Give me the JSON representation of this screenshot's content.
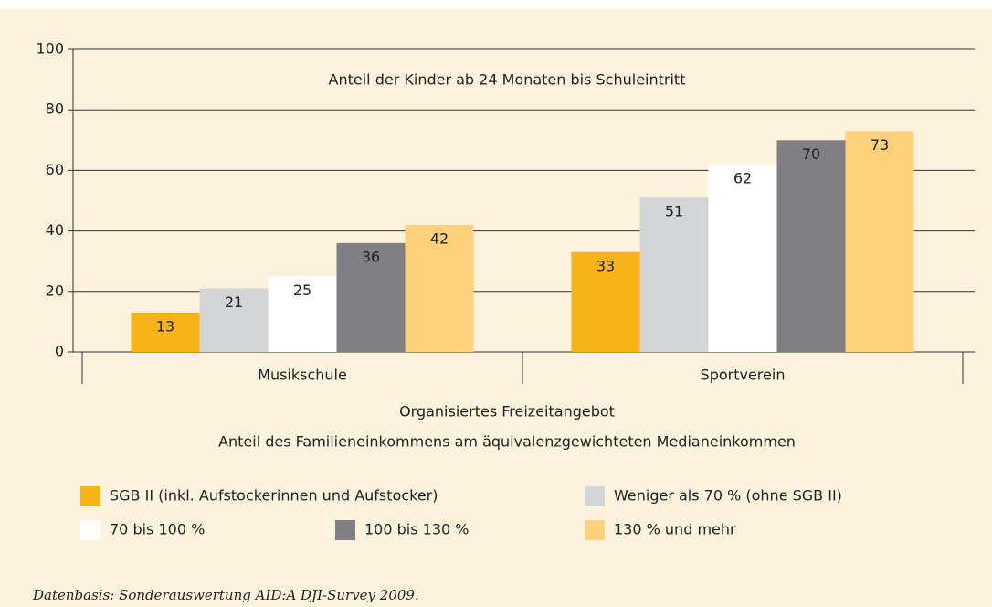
{
  "chart_data": {
    "type": "bar",
    "annotation": "Anteil der Kinder ab 24 Monaten bis Schuleintritt",
    "categories": [
      "Musikschule",
      "Sportverein"
    ],
    "xlabel": "Organisiertes Freizeitangebot",
    "legend_title": "Anteil des Familieneinkommens am äquivalenzgewichteten Medianeinkommen",
    "series": [
      {
        "name": "SGB II (inkl. Aufstockerinnen und Aufstocker)",
        "color": "#f7b418",
        "values": [
          13,
          33
        ]
      },
      {
        "name": "Weniger als 70 % (ohne SGB II)",
        "color": "#d4d5d7",
        "values": [
          21,
          51
        ]
      },
      {
        "name": "70 bis 100 %",
        "color": "#ffffff",
        "values": [
          25,
          62
        ]
      },
      {
        "name": "100 bis 130 %",
        "color": "#808084",
        "values": [
          36,
          70
        ]
      },
      {
        "name": "130 % und mehr",
        "color": "#fdd27a",
        "values": [
          42,
          73
        ]
      }
    ],
    "ylim": [
      0,
      100
    ],
    "yticks": [
      0,
      20,
      40,
      60,
      80,
      100
    ],
    "grid": true,
    "source": "Datenbasis: Sonderauswertung AID:A DJI-Survey 2009."
  }
}
